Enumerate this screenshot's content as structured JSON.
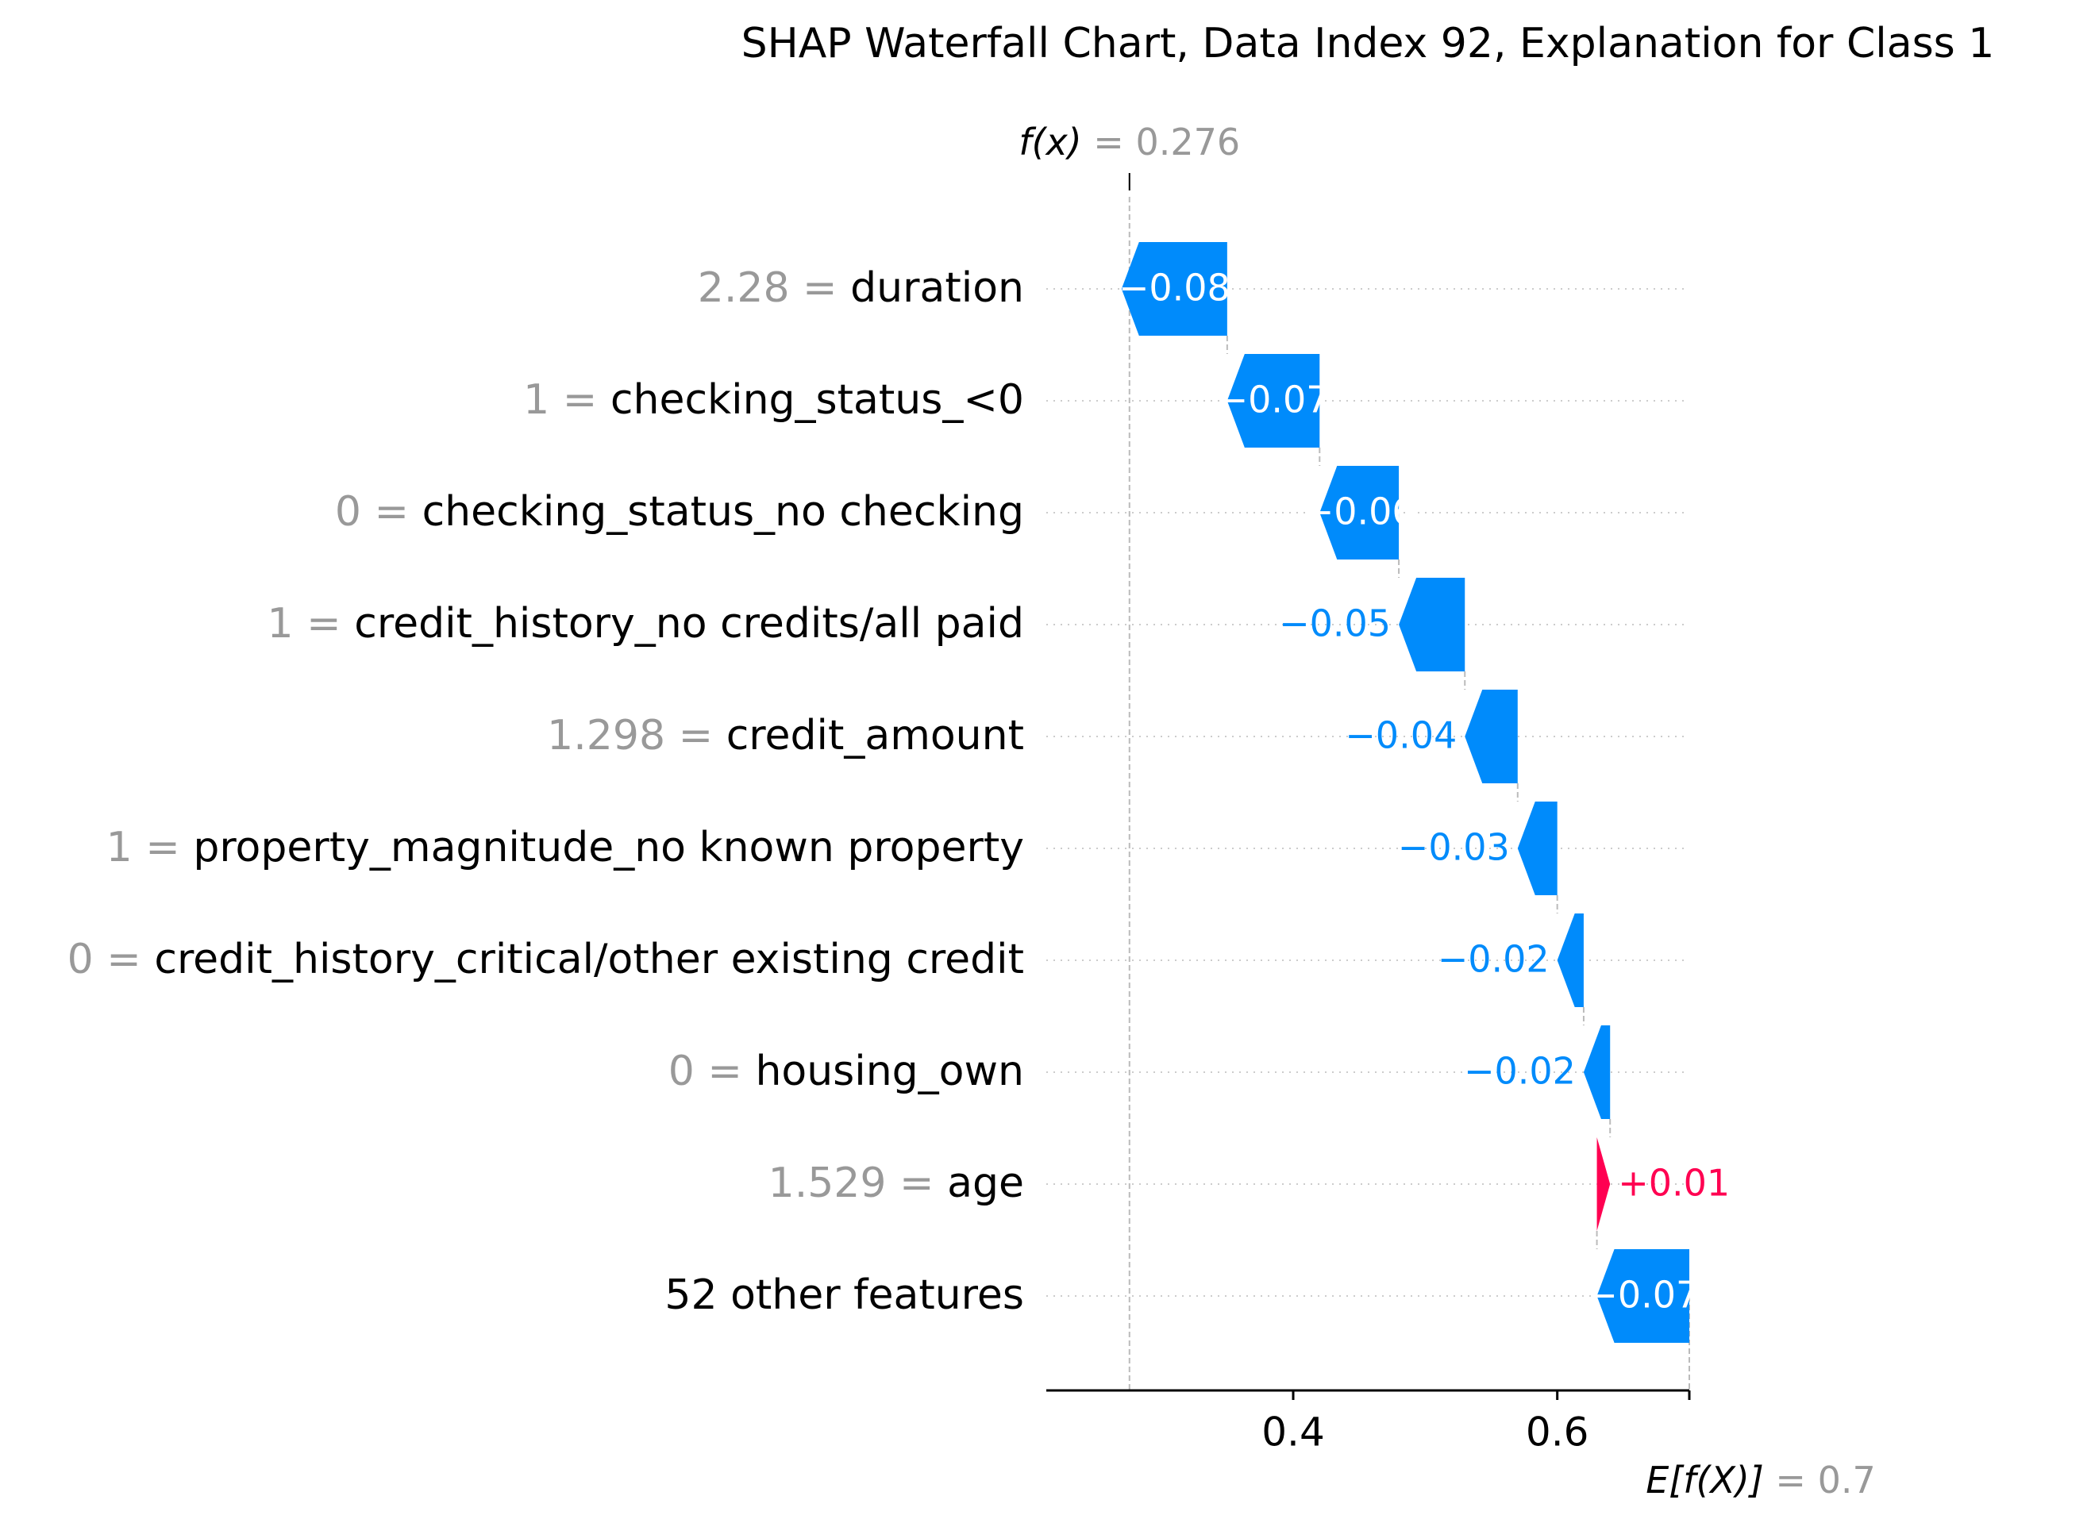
{
  "chart_data": {
    "type": "waterfall",
    "title": "SHAP Waterfall Chart, Data Index 92, Explanation for Class 1",
    "fx_label": "f(x)",
    "fx_value_text": "0.276",
    "fx_value": 0.276,
    "base_label": "E[f(X)]",
    "base_value_text": "0.7",
    "base_value": 0.7,
    "xlim": [
      0.213,
      0.7
    ],
    "xticks": [
      0.4,
      0.6
    ],
    "xtick_labels": [
      "0.4",
      "0.6"
    ],
    "grid": "dotted horizontal lines per feature row",
    "features": [
      {
        "value_text": "2.28",
        "name": "duration",
        "shap": -0.08,
        "label": "−0.08"
      },
      {
        "value_text": "1",
        "name": "checking_status_<0",
        "shap": -0.07,
        "label": "−0.07"
      },
      {
        "value_text": "0",
        "name": "checking_status_no checking",
        "shap": -0.06,
        "label": "−0.06"
      },
      {
        "value_text": "1",
        "name": "credit_history_no credits/all paid",
        "shap": -0.05,
        "label": "−0.05"
      },
      {
        "value_text": "1.298",
        "name": "credit_amount",
        "shap": -0.04,
        "label": "−0.04"
      },
      {
        "value_text": "1",
        "name": "property_magnitude_no known property",
        "shap": -0.03,
        "label": "−0.03"
      },
      {
        "value_text": "0",
        "name": "credit_history_critical/other existing credit",
        "shap": -0.02,
        "label": "−0.02"
      },
      {
        "value_text": "0",
        "name": "housing_own",
        "shap": -0.02,
        "label": "−0.02"
      },
      {
        "value_text": "1.529",
        "name": "age",
        "shap": 0.01,
        "label": "+0.01"
      },
      {
        "value_text": "",
        "name": "52 other features",
        "shap": -0.07,
        "label": "−0.07"
      }
    ],
    "colors": {
      "negative": "#008bfb",
      "positive": "#ff0051",
      "feature_value": "#999999",
      "text": "#000000",
      "grid": "#cccccc"
    }
  }
}
